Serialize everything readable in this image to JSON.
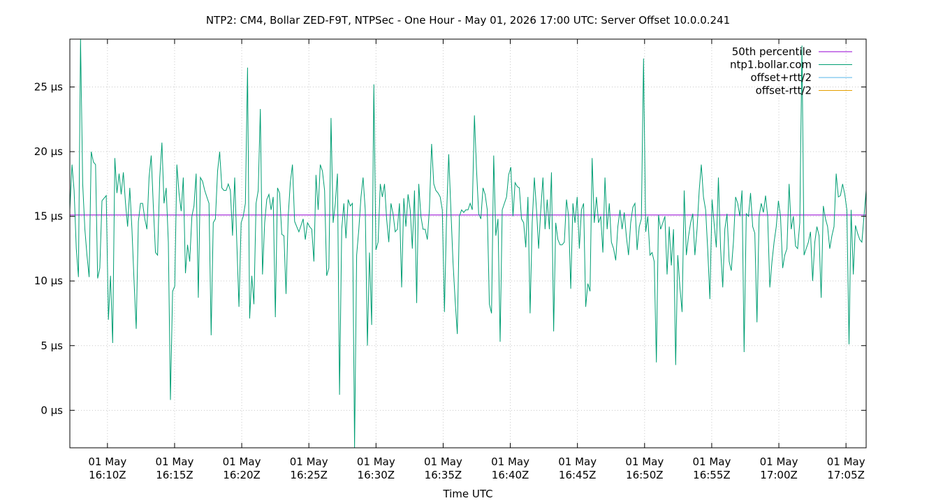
{
  "chart_data": {
    "type": "line",
    "title": "NTP2: CM4, Bollar ZED-F9T, NTPSec - One Hour - May 01, 2026 17:00 UTC: Server Offset 10.0.0.241",
    "xlabel": "Time UTC",
    "ylabel": "",
    "ylim": [
      -2.9,
      28.7
    ],
    "yticks": [
      0,
      5,
      10,
      15,
      20,
      25
    ],
    "ytick_labels": [
      "0 µs",
      "5 µs",
      "10 µs",
      "15 µs",
      "20 µs",
      "25 µs"
    ],
    "xlim_minutes": [
      7.2,
      66.5
    ],
    "xticks_minutes": [
      10,
      15,
      20,
      25,
      30,
      35,
      40,
      45,
      50,
      55,
      60,
      65
    ],
    "xtick_labels": [
      [
        "01 May",
        "16:10Z"
      ],
      [
        "01 May",
        "16:15Z"
      ],
      [
        "01 May",
        "16:20Z"
      ],
      [
        "01 May",
        "16:25Z"
      ],
      [
        "01 May",
        "16:30Z"
      ],
      [
        "01 May",
        "16:35Z"
      ],
      [
        "01 May",
        "16:40Z"
      ],
      [
        "01 May",
        "16:45Z"
      ],
      [
        "01 May",
        "16:50Z"
      ],
      [
        "01 May",
        "16:55Z"
      ],
      [
        "01 May",
        "17:00Z"
      ],
      [
        "01 May",
        "17:05Z"
      ]
    ],
    "grid": true,
    "legend_position": "top-right",
    "series": [
      {
        "name": "50th percentile",
        "color": "#9400d3",
        "kind": "hline",
        "value": 15.1
      },
      {
        "name": "ntp1.bollar.com",
        "color": "#009e73",
        "kind": "line",
        "values": [
          15.5,
          19.0,
          17.0,
          12.5,
          10.3,
          28.8,
          17.5,
          14.0,
          12.0,
          10.3,
          20.0,
          19.2,
          19.0,
          10.2,
          11.0,
          16.2,
          16.4,
          16.6,
          7.0,
          10.4,
          5.2,
          19.5,
          16.8,
          18.3,
          16.7,
          18.4,
          16.0,
          14.2,
          17.2,
          14.0,
          10.0,
          6.3,
          14.6,
          16.0,
          16.0,
          14.8,
          14.0,
          18.0,
          19.7,
          15.8,
          12.2,
          12.0,
          18.0,
          20.7,
          16.0,
          17.2,
          13.0,
          0.8,
          9.2,
          9.6,
          19.0,
          16.8,
          15.4,
          18.0,
          10.6,
          12.8,
          11.5,
          15.0,
          15.8,
          18.3,
          8.7,
          18.0,
          17.7,
          17.0,
          16.5,
          16.0,
          5.8,
          14.5,
          14.8,
          18.5,
          20.0,
          17.2,
          17.0,
          17.0,
          17.5,
          17.0,
          13.5,
          18.0,
          13.0,
          8.0,
          14.5,
          15.0,
          16.0,
          26.5,
          7.1,
          10.4,
          8.2,
          16.0,
          17.0,
          23.3,
          10.5,
          14.5,
          16.3,
          16.7,
          15.5,
          16.5,
          7.2,
          17.2,
          16.8,
          13.6,
          13.5,
          9.0,
          15.0,
          17.6,
          19.0,
          14.6,
          14.2,
          13.8,
          14.3,
          14.8,
          13.2,
          14.5,
          14.2,
          14.0,
          11.5,
          18.2,
          15.5,
          19.0,
          18.5,
          17.0,
          10.4,
          11.0,
          22.6,
          14.5,
          16.0,
          18.3,
          1.2,
          14.0,
          16.0,
          13.3,
          16.3,
          15.8,
          16.0,
          -2.9,
          12.0,
          14.0,
          16.5,
          18.0,
          15.5,
          5.0,
          12.2,
          6.6,
          25.2,
          12.4,
          13.0,
          17.5,
          16.5,
          17.5,
          14.8,
          13.0,
          16.0,
          15.2,
          13.8,
          14.0,
          16.0,
          9.5,
          16.4,
          14.2,
          16.7,
          15.5,
          12.5,
          17.0,
          8.3,
          17.5,
          15.0,
          14.0,
          14.0,
          13.2,
          15.6,
          20.6,
          17.5,
          17.0,
          16.8,
          16.5,
          15.5,
          7.6,
          15.2,
          19.8,
          15.5,
          11.5,
          8.5,
          5.9,
          15.0,
          15.5,
          15.3,
          15.5,
          15.5,
          16.0,
          15.5,
          22.8,
          18.5,
          15.2,
          14.8,
          17.2,
          16.7,
          15.5,
          8.2,
          7.5,
          19.7,
          13.5,
          14.8,
          5.3,
          15.5,
          16.0,
          16.5,
          18.2,
          18.8,
          15.0,
          17.6,
          17.3,
          17.2,
          14.8,
          14.5,
          12.6,
          16.5,
          7.5,
          14.5,
          18.0,
          15.5,
          12.5,
          15.5,
          18.0,
          14.0,
          16.3,
          14.0,
          18.4,
          6.1,
          14.5,
          13.2,
          12.8,
          12.8,
          13.0,
          16.3,
          15.0,
          9.4,
          16.0,
          14.5,
          16.5,
          12.5,
          15.5,
          16.0,
          8.0,
          9.8,
          9.2,
          19.5,
          14.5,
          16.5,
          14.5,
          15.0,
          12.2,
          18.0,
          14.0,
          16.0,
          13.0,
          12.5,
          11.6,
          14.2,
          15.5,
          14.0,
          15.3,
          13.4,
          12.0,
          14.5,
          15.7,
          16.0,
          12.4,
          14.2,
          14.8,
          27.2,
          13.8,
          15.0,
          12.0,
          12.2,
          11.5,
          3.7,
          15.1,
          14.0,
          14.5,
          15.0,
          10.5,
          14.2,
          11.2,
          14.0,
          3.5,
          12.0,
          9.5,
          7.6,
          17.0,
          12.0,
          13.4,
          14.5,
          15.2,
          12.0,
          14.0,
          17.0,
          19.0,
          16.5,
          15.5,
          12.4,
          8.6,
          16.3,
          14.4,
          12.6,
          18.0,
          12.5,
          9.5,
          14.0,
          15.2,
          11.5,
          10.8,
          13.0,
          16.5,
          16.0,
          15.0,
          17.0,
          4.5,
          15.2,
          15.0,
          16.8,
          14.2,
          13.7,
          6.8,
          15.0,
          16.0,
          15.3,
          16.6,
          15.0,
          9.5,
          11.5,
          13.0,
          14.2,
          16.2,
          15.0,
          11.0,
          12.0,
          12.5,
          17.5,
          14.0,
          15.0,
          12.7,
          12.5,
          14.5,
          28.2,
          12.0,
          12.5,
          13.0,
          13.8,
          10.0,
          13.0,
          14.2,
          13.5,
          8.7,
          15.8,
          14.8,
          14.2,
          12.5,
          13.5,
          14.2,
          18.3,
          16.5,
          16.6,
          17.5,
          16.7,
          15.5,
          5.1,
          15.5,
          10.5,
          14.3,
          13.7,
          13.2,
          13.0,
          15.0,
          17.0
        ]
      },
      {
        "name": "offset+rtt/2",
        "color": "#56b4e9",
        "kind": "line",
        "values": []
      },
      {
        "name": "offset-rtt/2",
        "color": "#e69f00",
        "kind": "line",
        "values": []
      }
    ]
  }
}
